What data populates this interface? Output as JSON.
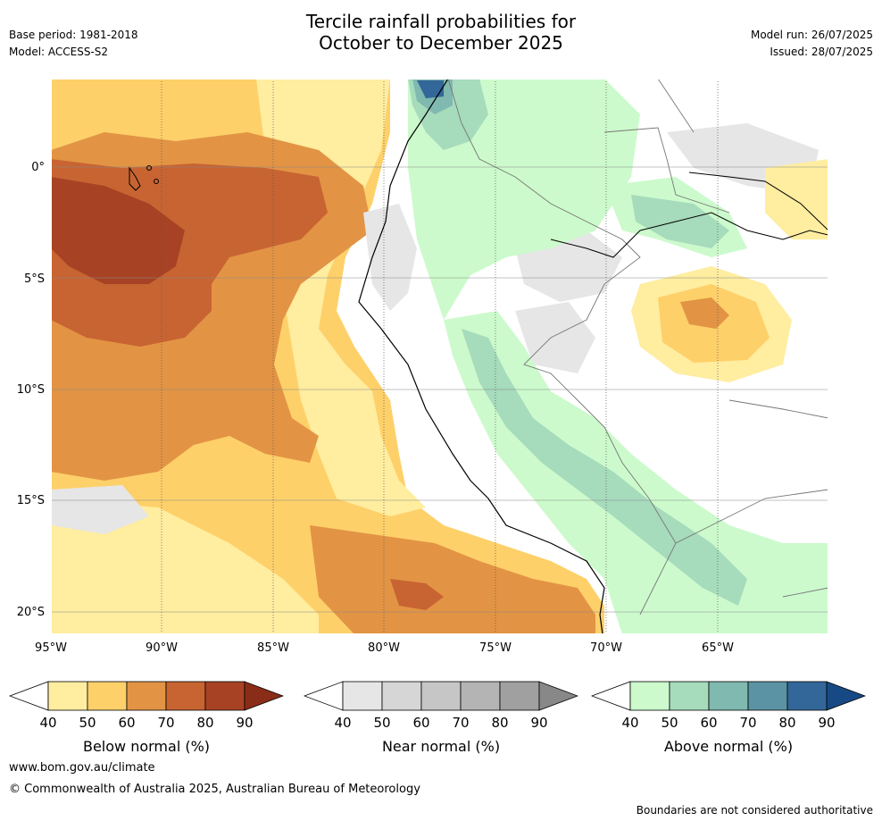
{
  "header": {
    "base_period": "Base period: 1981-2018",
    "model": "Model: ACCESS-S2",
    "title_line1": "Tercile rainfall probabilities for",
    "title_line2": "October to December 2025",
    "model_run": "Model run: 26/07/2025",
    "issued": "Issued: 28/07/2025"
  },
  "map": {
    "lat_labels": [
      "0°",
      "5°S",
      "10°S",
      "15°S",
      "20°S"
    ],
    "lon_labels": [
      "95°W",
      "90°W",
      "85°W",
      "80°W",
      "75°W",
      "70°W",
      "65°W"
    ]
  },
  "colorbars": {
    "ticks": [
      "40",
      "50",
      "60",
      "70",
      "80",
      "90"
    ],
    "below": {
      "label": "Below normal (%)",
      "colors": [
        "#ffeda0",
        "#fed06a",
        "#e29444",
        "#c86432",
        "#a84224",
        "#8a2d18"
      ]
    },
    "near": {
      "label": "Near normal (%)",
      "colors": [
        "#e6e6e6",
        "#d6d6d6",
        "#c6c6c6",
        "#b4b4b4",
        "#a0a0a0",
        "#888888"
      ]
    },
    "above": {
      "label": "Above normal (%)",
      "colors": [
        "#ccfacc",
        "#a6dbbc",
        "#80b9b0",
        "#5c93a4",
        "#336799",
        "#174a84"
      ]
    }
  },
  "footer": {
    "url": "www.bom.gov.au/climate",
    "copyright": "© Commonwealth of Australia 2025, Australian Bureau of Meteorology",
    "disclaimer": "Boundaries are not considered authoritative"
  }
}
